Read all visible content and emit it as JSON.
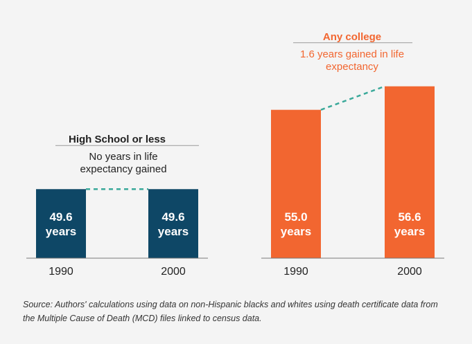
{
  "chart_data": [
    {
      "type": "bar",
      "title": "High School or less",
      "subtitle": "No years in life expectancy gained",
      "categories": [
        "1990",
        "2000"
      ],
      "values": [
        49.6,
        49.6
      ],
      "value_labels": [
        "49.6 years",
        "49.6 years"
      ],
      "color": "#0e4766",
      "ylim": [
        44.9,
        58
      ]
    },
    {
      "type": "bar",
      "title": "Any college",
      "subtitle": "1.6 years gained in life expectancy",
      "categories": [
        "1990",
        "2000"
      ],
      "values": [
        55.0,
        56.6
      ],
      "value_labels": [
        "55.0 years",
        "56.6 years"
      ],
      "color": "#f26630",
      "ylim": [
        44.9,
        58
      ]
    }
  ],
  "source": "Source: Authors' calculations using data on non-Hispanic blacks and whites using death certificate data from the Multiple Cause of Death (MCD) files linked to census data."
}
